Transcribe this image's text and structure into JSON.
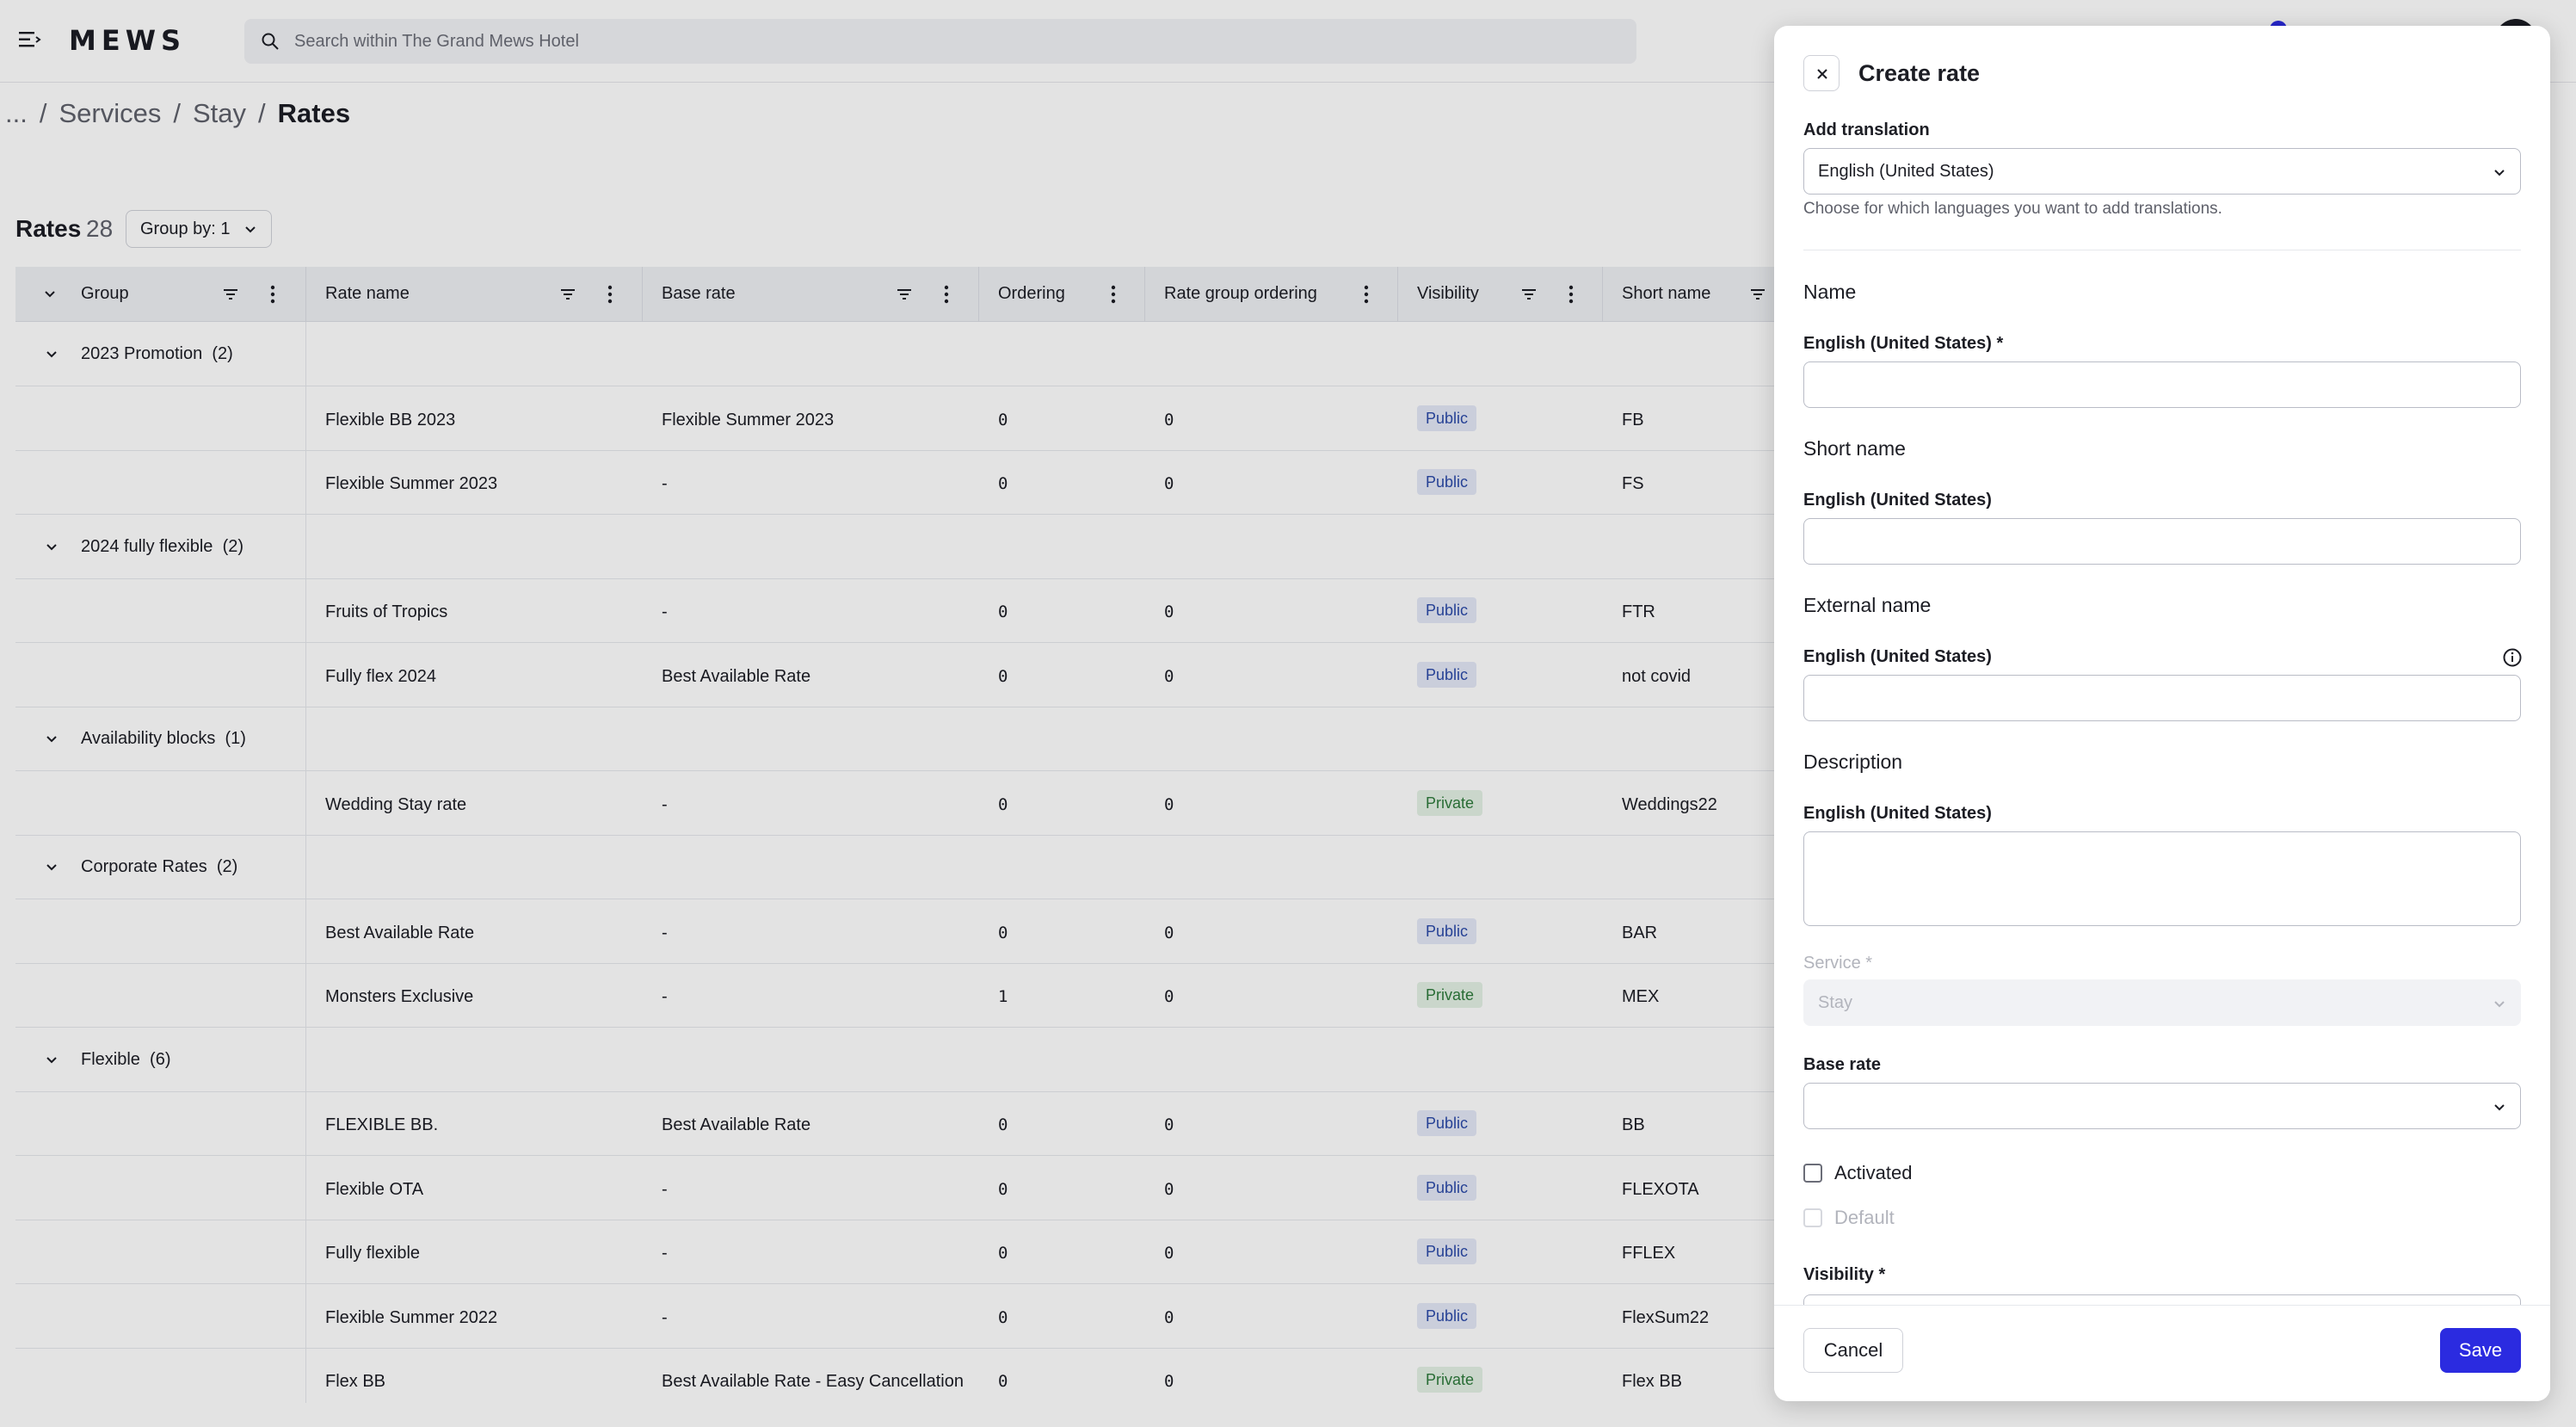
{
  "topbar": {
    "logo": "MEWS",
    "search_placeholder": "Search within The Grand Mews Hotel"
  },
  "breadcrumb": {
    "ellipsis": "...",
    "items": [
      "Services",
      "Stay"
    ],
    "current": "Rates"
  },
  "rates": {
    "title": "Rates",
    "count": "28",
    "group_by": "Group by: 1"
  },
  "table": {
    "columns": [
      "Group",
      "Rate name",
      "Base rate",
      "Ordering",
      "Rate group ordering",
      "Visibility",
      "Short name"
    ],
    "groups": [
      {
        "label": "2023 Promotion",
        "count": "(2)",
        "rows": [
          {
            "name": "Flexible BB 2023",
            "base": "Flexible Summer 2023",
            "ordering": "0",
            "group_ordering": "0",
            "visibility": "Public",
            "short": "FB"
          },
          {
            "name": "Flexible Summer 2023",
            "base": "-",
            "ordering": "0",
            "group_ordering": "0",
            "visibility": "Public",
            "short": "FS"
          }
        ]
      },
      {
        "label": "2024 fully flexible",
        "count": "(2)",
        "rows": [
          {
            "name": "Fruits of Tropics",
            "base": "-",
            "ordering": "0",
            "group_ordering": "0",
            "visibility": "Public",
            "short": "FTR"
          },
          {
            "name": "Fully flex 2024",
            "base": "Best Available Rate",
            "ordering": "0",
            "group_ordering": "0",
            "visibility": "Public",
            "short": "not covid"
          }
        ]
      },
      {
        "label": "Availability blocks",
        "count": "(1)",
        "rows": [
          {
            "name": "Wedding Stay rate",
            "base": "-",
            "ordering": "0",
            "group_ordering": "0",
            "visibility": "Private",
            "short": "Weddings22"
          }
        ]
      },
      {
        "label": "Corporate Rates",
        "count": "(2)",
        "rows": [
          {
            "name": "Best Available Rate",
            "base": "-",
            "ordering": "0",
            "group_ordering": "0",
            "visibility": "Public",
            "short": "BAR"
          },
          {
            "name": "Monsters Exclusive",
            "base": "-",
            "ordering": "1",
            "group_ordering": "0",
            "visibility": "Private",
            "short": "MEX"
          }
        ]
      },
      {
        "label": "Flexible",
        "count": "(6)",
        "rows": [
          {
            "name": "FLEXIBLE BB.",
            "base": "Best Available Rate",
            "ordering": "0",
            "group_ordering": "0",
            "visibility": "Public",
            "short": "BB"
          },
          {
            "name": "Flexible OTA",
            "base": "-",
            "ordering": "0",
            "group_ordering": "0",
            "visibility": "Public",
            "short": "FLEXOTA"
          },
          {
            "name": "Fully flexible",
            "base": "-",
            "ordering": "0",
            "group_ordering": "0",
            "visibility": "Public",
            "short": "FFLEX"
          },
          {
            "name": "Flexible Summer 2022",
            "base": "-",
            "ordering": "0",
            "group_ordering": "0",
            "visibility": "Public",
            "short": "FlexSum22"
          },
          {
            "name": "Flex BB",
            "base": "Best Available Rate - Easy Cancellation",
            "ordering": "0",
            "group_ordering": "0",
            "visibility": "Private",
            "short": "Flex BB"
          }
        ]
      }
    ]
  },
  "panel": {
    "title": "Create rate",
    "add_translation_label": "Add translation",
    "add_translation_value": "English (United States)",
    "add_translation_help": "Choose for which languages you want to add translations.",
    "name_section": "Name",
    "name_label": "English (United States) *",
    "short_name_section": "Short name",
    "short_name_label": "English (United States)",
    "external_name_section": "External name",
    "external_name_label": "English (United States)",
    "description_section": "Description",
    "description_label": "English (United States)",
    "service_label": "Service *",
    "service_value": "Stay",
    "base_rate_label": "Base rate",
    "activated_label": "Activated",
    "default_label": "Default",
    "visibility_label": "Visibility *",
    "cancel": "Cancel",
    "save": "Save"
  }
}
